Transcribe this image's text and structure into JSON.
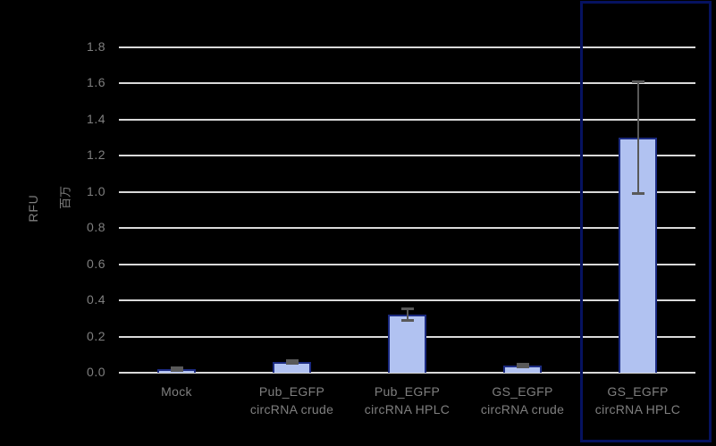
{
  "chart_data": {
    "type": "bar",
    "title": "",
    "categories": [
      "Mock",
      "Pub_EGFP\ncircRNA crude",
      "Pub_EGFP\ncircRNA HPLC",
      "GS_EGFP\ncircRNA crude",
      "GS_EGFP\ncircRNA HPLC"
    ],
    "values": [
      0.02,
      0.06,
      0.32,
      0.04,
      1.3
    ],
    "errors": [
      0.01,
      0.01,
      0.035,
      0.01,
      0.31
    ],
    "xlabel": "",
    "ylabel": "RFU",
    "y_unit_label": "百万",
    "ylim": [
      0,
      1.8
    ],
    "ytick_step": 0.2,
    "ytick_labels": [
      "0.0",
      "0.2",
      "0.4",
      "0.6",
      "0.8",
      "1.0",
      "1.2",
      "1.4",
      "1.6",
      "1.8"
    ],
    "grid": true,
    "legend": "none",
    "highlighted_category": "GS_EGFP circRNA HPLC",
    "highlighted_index": 4,
    "colors": {
      "background": "#000000",
      "bar_fill": "#b1c2f1",
      "bar_border": "#1b2a80",
      "gridline": "#d9d9d9",
      "axis_text": "#7f7f7f",
      "error_bar": "#595959",
      "highlight_box": "#061260"
    }
  }
}
